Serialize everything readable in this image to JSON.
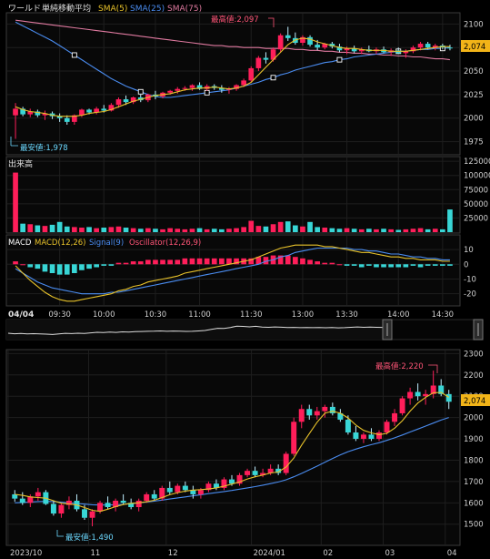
{
  "window": {
    "title": "ワールド",
    "indicator_label": "単純移動平均",
    "sma5_label": "SMA(5)",
    "sma25_label": "SMA(25)",
    "sma75_label": "SMA(75)",
    "volume_label": "出来高",
    "macd_label": "MACD",
    "macd_line_label": "MACD(12,26)",
    "signal_label": "Signal(9)",
    "osc_label": "Oscillator(12,26,9)",
    "date_label": "04/04"
  },
  "colors": {
    "up": "#ff1e5a",
    "down": "#38d6d6",
    "sma5": "#e8c22a",
    "sma25": "#4a8cf0",
    "sma75": "#e07aa0",
    "price_tag": "#f2b418",
    "max_label": "#ff5577",
    "min_label": "#6cd9ff"
  },
  "chart_data": [
    {
      "type": "candlestick",
      "panel": "intraday-price",
      "title": "単純移動平均",
      "x_ticks": [
        "09:30",
        "10:00",
        "10:30",
        "11:00",
        "11:30",
        "13:00",
        "13:30",
        "14:00",
        "14:30"
      ],
      "y_ticks": [
        "2100",
        "2075",
        "2050",
        "2025",
        "2000",
        "1975"
      ],
      "ylim": [
        1963,
        2110
      ],
      "last_price": "2,074",
      "max_label": "最高値:2,097",
      "min_label": "最安値:1,978",
      "candles": [
        [
          2003,
          2016,
          1978,
          2010
        ],
        [
          2010,
          2012,
          2002,
          2004
        ],
        [
          2004,
          2010,
          2001,
          2007
        ],
        [
          2007,
          2009,
          2001,
          2003
        ],
        [
          2003,
          2008,
          1998,
          2005
        ],
        [
          2005,
          2007,
          1999,
          2002
        ],
        [
          2002,
          2005,
          1996,
          2000
        ],
        [
          2000,
          2003,
          1993,
          1996
        ],
        [
          1996,
          2004,
          1993,
          2003
        ],
        [
          2003,
          2010,
          2001,
          2009
        ],
        [
          2009,
          2010,
          2004,
          2006
        ],
        [
          2006,
          2012,
          2004,
          2010
        ],
        [
          2010,
          2014,
          2006,
          2008
        ],
        [
          2008,
          2016,
          2007,
          2014
        ],
        [
          2014,
          2022,
          2011,
          2020
        ],
        [
          2020,
          2024,
          2014,
          2017
        ],
        [
          2017,
          2023,
          2015,
          2022
        ],
        [
          2022,
          2025,
          2017,
          2019
        ],
        [
          2019,
          2026,
          2017,
          2025
        ],
        [
          2025,
          2029,
          2020,
          2023
        ],
        [
          2023,
          2028,
          2021,
          2027
        ],
        [
          2027,
          2030,
          2025,
          2029
        ],
        [
          2029,
          2033,
          2026,
          2031
        ],
        [
          2031,
          2034,
          2029,
          2032
        ],
        [
          2032,
          2036,
          2029,
          2035
        ],
        [
          2035,
          2038,
          2030,
          2031
        ],
        [
          2031,
          2036,
          2029,
          2034
        ],
        [
          2034,
          2036,
          2030,
          2032
        ],
        [
          2032,
          2035,
          2027,
          2030
        ],
        [
          2030,
          2033,
          2026,
          2031
        ],
        [
          2031,
          2036,
          2029,
          2035
        ],
        [
          2035,
          2042,
          2033,
          2040
        ],
        [
          2040,
          2055,
          2038,
          2053
        ],
        [
          2053,
          2066,
          2050,
          2064
        ],
        [
          2064,
          2070,
          2058,
          2062
        ],
        [
          2062,
          2075,
          2060,
          2073
        ],
        [
          2073,
          2090,
          2070,
          2088
        ],
        [
          2088,
          2097,
          2082,
          2085
        ],
        [
          2085,
          2091,
          2078,
          2080
        ],
        [
          2080,
          2088,
          2077,
          2086
        ],
        [
          2086,
          2088,
          2076,
          2078
        ],
        [
          2078,
          2083,
          2072,
          2075
        ],
        [
          2075,
          2080,
          2073,
          2079
        ],
        [
          2079,
          2081,
          2074,
          2076
        ],
        [
          2076,
          2079,
          2070,
          2072
        ],
        [
          2072,
          2076,
          2068,
          2074
        ],
        [
          2074,
          2077,
          2069,
          2071
        ],
        [
          2071,
          2075,
          2068,
          2073
        ],
        [
          2073,
          2077,
          2070,
          2071
        ],
        [
          2071,
          2075,
          2068,
          2073
        ],
        [
          2073,
          2076,
          2069,
          2070
        ],
        [
          2070,
          2074,
          2066,
          2072
        ],
        [
          2072,
          2075,
          2068,
          2069
        ],
        [
          2069,
          2073,
          2064,
          2071
        ],
        [
          2071,
          2077,
          2069,
          2075
        ],
        [
          2075,
          2081,
          2072,
          2079
        ],
        [
          2079,
          2081,
          2073,
          2075
        ],
        [
          2075,
          2079,
          2072,
          2077
        ],
        [
          2077,
          2079,
          2073,
          2075
        ],
        [
          2075,
          2078,
          2072,
          2074
        ]
      ],
      "sma5": [
        2012,
        2009,
        2007,
        2006,
        2005,
        2003,
        2002,
        2002,
        2002,
        2003,
        2005,
        2006,
        2007,
        2009,
        2012,
        2015,
        2018,
        2020,
        2022,
        2024,
        2025,
        2026,
        2028,
        2030,
        2031,
        2032,
        2032,
        2033,
        2032,
        2031,
        2032,
        2034,
        2038,
        2046,
        2054,
        2062,
        2070,
        2078,
        2083,
        2085,
        2084,
        2081,
        2079,
        2077,
        2075,
        2074,
        2074,
        2073,
        2072,
        2072,
        2072,
        2071,
        2071,
        2071,
        2072,
        2073,
        2074,
        2075,
        2076,
        2076
      ],
      "sma25": [
        2102,
        2098,
        2094,
        2090,
        2086,
        2082,
        2077,
        2072,
        2067,
        2062,
        2057,
        2052,
        2047,
        2042,
        2038,
        2034,
        2031,
        2028,
        2025,
        2023,
        2022,
        2022,
        2023,
        2024,
        2025,
        2026,
        2027,
        2028,
        2029,
        2030,
        2032,
        2034,
        2036,
        2038,
        2041,
        2043,
        2046,
        2048,
        2051,
        2053,
        2055,
        2057,
        2059,
        2060,
        2062,
        2063,
        2065,
        2066,
        2067,
        2068,
        2069,
        2070,
        2071,
        2071,
        2072,
        2073,
        2073,
        2074,
        2074,
        2075
      ],
      "sma75": [
        2104,
        2103,
        2102,
        2101,
        2100,
        2099,
        2098,
        2097,
        2096,
        2095,
        2094,
        2093,
        2092,
        2091,
        2090,
        2089,
        2088,
        2087,
        2086,
        2085,
        2084,
        2083,
        2082,
        2081,
        2080,
        2079,
        2078,
        2077,
        2077,
        2076,
        2076,
        2075,
        2075,
        2075,
        2074,
        2074,
        2074,
        2074,
        2073,
        2073,
        2072,
        2072,
        2071,
        2071,
        2070,
        2070,
        2069,
        2069,
        2068,
        2068,
        2067,
        2067,
        2066,
        2066,
        2065,
        2065,
        2064,
        2063,
        2063,
        2062
      ]
    },
    {
      "type": "bar",
      "panel": "volume",
      "title": "出来高",
      "y_ticks": [
        "125000",
        "100000",
        "75000",
        "50000",
        "25000"
      ],
      "ylim": [
        0,
        130000
      ],
      "values": [
        105000,
        15000,
        14000,
        12000,
        11000,
        13000,
        18000,
        10000,
        9000,
        8000,
        9000,
        7000,
        8000,
        9000,
        10000,
        8000,
        7000,
        6000,
        7000,
        6000,
        5000,
        7000,
        6000,
        5000,
        6000,
        7000,
        5000,
        6000,
        5000,
        6000,
        7000,
        9000,
        20000,
        11000,
        10000,
        14000,
        18000,
        19000,
        12000,
        10000,
        18000,
        9000,
        8000,
        7000,
        6000,
        7000,
        6000,
        5000,
        6000,
        5000,
        6000,
        5000,
        4000,
        5000,
        6000,
        7000,
        5000,
        6000,
        5000,
        40000
      ]
    },
    {
      "type": "line",
      "panel": "macd",
      "title": "MACD",
      "y_ticks": [
        "10",
        "0",
        "-10",
        "-20"
      ],
      "ylim": [
        -27,
        15
      ],
      "macd": [
        -1,
        -6,
        -11,
        -15,
        -19,
        -22,
        -24,
        -25,
        -25,
        -24,
        -23,
        -22,
        -21,
        -20,
        -18,
        -17,
        -15,
        -14,
        -12,
        -11,
        -10,
        -9,
        -8,
        -6,
        -5,
        -4,
        -3,
        -2,
        -1,
        0,
        1,
        2,
        3,
        5,
        7,
        9,
        11,
        12,
        13,
        13,
        13,
        13,
        12,
        12,
        11,
        10,
        9,
        8,
        8,
        7,
        6,
        5,
        5,
        4,
        4,
        3,
        3,
        3,
        2,
        2
      ],
      "signal": [
        -3,
        -6,
        -9,
        -12,
        -14,
        -16,
        -17,
        -18,
        -19,
        -20,
        -20,
        -20,
        -20,
        -19,
        -19,
        -18,
        -17,
        -16,
        -15,
        -14,
        -13,
        -12,
        -11,
        -10,
        -9,
        -8,
        -7,
        -6,
        -5,
        -4,
        -3,
        -2,
        -1,
        0,
        2,
        3,
        5,
        6,
        8,
        9,
        10,
        11,
        11,
        11,
        11,
        11,
        10,
        10,
        9,
        9,
        8,
        7,
        7,
        6,
        5,
        5,
        4,
        4,
        3,
        3
      ],
      "oscillator": [
        2,
        0,
        -2,
        -3,
        -5,
        -6,
        -7,
        -7,
        -6,
        -4,
        -3,
        -2,
        -1,
        -1,
        1,
        1,
        2,
        2,
        3,
        3,
        3,
        3,
        3,
        4,
        4,
        4,
        4,
        4,
        4,
        4,
        4,
        4,
        4,
        5,
        5,
        6,
        6,
        6,
        5,
        4,
        3,
        2,
        1,
        1,
        0,
        -1,
        -1,
        -2,
        -1,
        -2,
        -2,
        -2,
        -2,
        -2,
        -1,
        -2,
        -1,
        -1,
        -1,
        -1
      ]
    },
    {
      "type": "candlestick",
      "panel": "daily-price",
      "x_ticks": [
        "2023/10",
        "11",
        "12",
        "2024/01",
        "02",
        "03",
        "04"
      ],
      "y_ticks": [
        "2300",
        "2200",
        "2100",
        "2000",
        "1900",
        "1800",
        "1700",
        "1600",
        "1500"
      ],
      "ylim": [
        1405,
        2310
      ],
      "last_price": "2,074",
      "max_label": "最高値:2,220",
      "min_label": "最安値:1,490",
      "candles": [
        [
          1640,
          1660,
          1605,
          1620
        ],
        [
          1620,
          1650,
          1590,
          1600
        ],
        [
          1600,
          1640,
          1580,
          1630
        ],
        [
          1630,
          1670,
          1610,
          1650
        ],
        [
          1650,
          1660,
          1590,
          1595
        ],
        [
          1595,
          1610,
          1540,
          1550
        ],
        [
          1550,
          1600,
          1530,
          1590
        ],
        [
          1590,
          1630,
          1570,
          1610
        ],
        [
          1610,
          1640,
          1560,
          1570
        ],
        [
          1570,
          1590,
          1520,
          1530
        ],
        [
          1530,
          1570,
          1490,
          1560
        ],
        [
          1560,
          1610,
          1550,
          1600
        ],
        [
          1600,
          1630,
          1570,
          1580
        ],
        [
          1580,
          1620,
          1560,
          1610
        ],
        [
          1610,
          1640,
          1590,
          1600
        ],
        [
          1600,
          1620,
          1570,
          1580
        ],
        [
          1580,
          1620,
          1560,
          1610
        ],
        [
          1610,
          1650,
          1600,
          1640
        ],
        [
          1640,
          1660,
          1610,
          1620
        ],
        [
          1620,
          1680,
          1610,
          1670
        ],
        [
          1670,
          1700,
          1640,
          1650
        ],
        [
          1650,
          1690,
          1640,
          1680
        ],
        [
          1680,
          1700,
          1650,
          1660
        ],
        [
          1660,
          1680,
          1620,
          1640
        ],
        [
          1640,
          1670,
          1620,
          1660
        ],
        [
          1660,
          1700,
          1650,
          1690
        ],
        [
          1690,
          1710,
          1660,
          1670
        ],
        [
          1670,
          1720,
          1660,
          1710
        ],
        [
          1710,
          1730,
          1680,
          1690
        ],
        [
          1690,
          1740,
          1680,
          1730
        ],
        [
          1730,
          1760,
          1720,
          1750
        ],
        [
          1750,
          1770,
          1720,
          1730
        ],
        [
          1730,
          1760,
          1720,
          1740
        ],
        [
          1740,
          1780,
          1730,
          1760
        ],
        [
          1760,
          1780,
          1730,
          1740
        ],
        [
          1740,
          1840,
          1730,
          1830
        ],
        [
          1830,
          2000,
          1820,
          1980
        ],
        [
          1980,
          2060,
          1950,
          2040
        ],
        [
          2040,
          2060,
          1990,
          2010
        ],
        [
          2010,
          2050,
          1990,
          2030
        ],
        [
          2030,
          2060,
          2000,
          2050
        ],
        [
          2050,
          2070,
          2010,
          2020
        ],
        [
          2020,
          2040,
          1980,
          1990
        ],
        [
          1990,
          2010,
          1920,
          1930
        ],
        [
          1930,
          1960,
          1890,
          1900
        ],
        [
          1900,
          1930,
          1880,
          1920
        ],
        [
          1920,
          1950,
          1890,
          1900
        ],
        [
          1900,
          1940,
          1890,
          1930
        ],
        [
          1930,
          1990,
          1920,
          1980
        ],
        [
          1980,
          2040,
          1960,
          2020
        ],
        [
          2020,
          2100,
          2010,
          2090
        ],
        [
          2090,
          2140,
          2060,
          2120
        ],
        [
          2120,
          2160,
          2080,
          2100
        ],
        [
          2100,
          2130,
          2060,
          2110
        ],
        [
          2110,
          2220,
          2090,
          2150
        ],
        [
          2150,
          2180,
          2100,
          2110
        ],
        [
          2110,
          2130,
          2040,
          2074
        ]
      ],
      "sma5": [
        1640,
        1635,
        1628,
        1625,
        1622,
        1610,
        1598,
        1595,
        1590,
        1578,
        1565,
        1560,
        1570,
        1582,
        1592,
        1598,
        1600,
        1605,
        1612,
        1625,
        1638,
        1648,
        1655,
        1660,
        1662,
        1665,
        1670,
        1678,
        1688,
        1698,
        1712,
        1722,
        1730,
        1740,
        1745,
        1768,
        1810,
        1870,
        1925,
        1978,
        2020,
        2030,
        2020,
        1998,
        1965,
        1940,
        1928,
        1920,
        1926,
        1950,
        1985,
        2030,
        2068,
        2095,
        2116,
        2118,
        2095
      ],
      "sma25": [
        1600,
        1602,
        1604,
        1606,
        1607,
        1606,
        1603,
        1600,
        1597,
        1594,
        1591,
        1590,
        1590,
        1591,
        1593,
        1596,
        1600,
        1604,
        1608,
        1613,
        1618,
        1623,
        1628,
        1633,
        1638,
        1643,
        1648,
        1653,
        1658,
        1664,
        1670,
        1676,
        1683,
        1690,
        1698,
        1708,
        1722,
        1738,
        1755,
        1772,
        1790,
        1808,
        1825,
        1840,
        1852,
        1863,
        1873,
        1882,
        1893,
        1905,
        1918,
        1932,
        1946,
        1960,
        1974,
        1988,
        2000
      ]
    }
  ]
}
